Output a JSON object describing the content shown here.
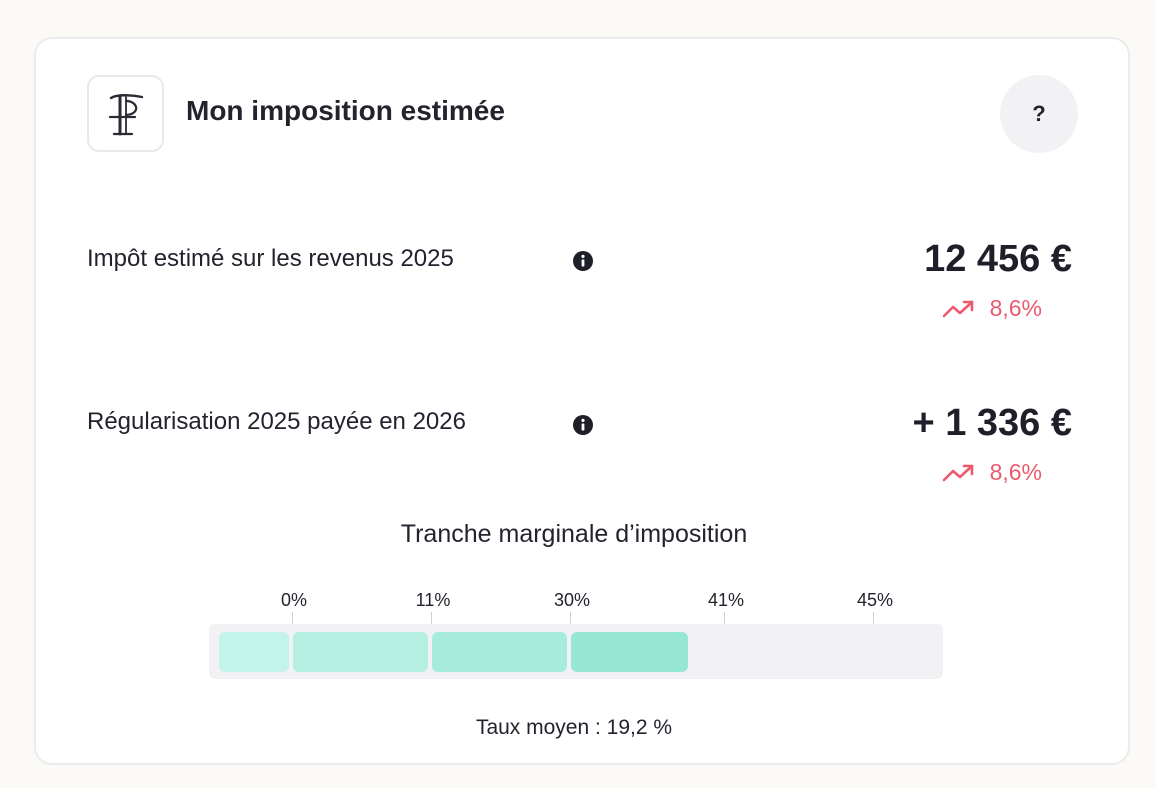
{
  "header": {
    "logo_icon": "fiscal-f-logo-icon",
    "title": "Mon imposition estimée",
    "help_label": "?"
  },
  "rows": [
    {
      "label": "Impôt estimé sur les revenus 2025",
      "info_icon": "info-icon",
      "amount": "12 456 €",
      "trend_icon": "trending-up-icon",
      "delta": "8,6%"
    },
    {
      "label": "Régularisation 2025 payée en 2026",
      "info_icon": "info-icon",
      "amount": "+ 1 336 €",
      "trend_icon": "trending-up-icon",
      "delta": "8,6%"
    }
  ],
  "brackets": {
    "title": "Tranche marginale d’imposition",
    "ticks": [
      "0%",
      "11%",
      "30%",
      "41%",
      "45%"
    ],
    "segment_colors": [
      "#c2f4ea",
      "#b4efe2",
      "#a6ecdd",
      "#97e7d5"
    ],
    "average_rate_label": "Taux moyen : 19,2 %"
  },
  "colors": {
    "accent_negative": "#ec5a6e",
    "segment_fill": "#a6ecdd"
  }
}
